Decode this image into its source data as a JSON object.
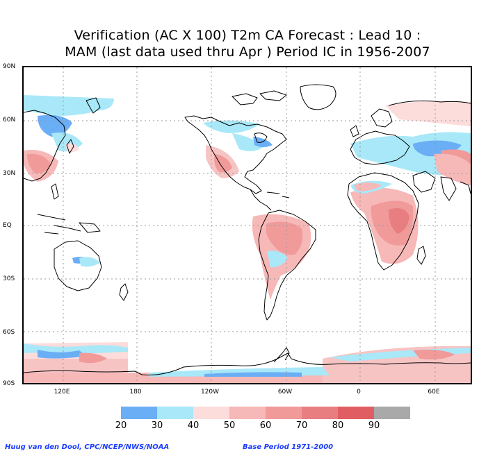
{
  "title": {
    "line1": "Verification (AC X 100) T2m CA Forecast : Lead 10 :",
    "line2": "MAM (last data used thru Apr ) Period IC in 1956-2007"
  },
  "map": {
    "lat_labels": [
      "90N",
      "60N",
      "30N",
      "EQ",
      "30S",
      "60S",
      "90S"
    ],
    "lon_labels": [
      "120E",
      "180",
      "120W",
      "60W",
      "0",
      "60E"
    ],
    "colors": {
      "coastline": "#000000",
      "grid": "#9a9a9a",
      "background": "#ffffff"
    }
  },
  "colorbar": {
    "colors": [
      "#6aaef5",
      "#a8e8f8",
      "#fddcdc",
      "#f7b8b8",
      "#f09a9a",
      "#e87e80",
      "#e05e62",
      "#a9a9a9"
    ],
    "labels": [
      "20",
      "30",
      "40",
      "50",
      "60",
      "70",
      "80",
      "90"
    ]
  },
  "footer": {
    "credit": "Huug van den Dool, CPC/NCEP/NWS/NOAA",
    "base_period": "Base Period 1971-2000"
  }
}
